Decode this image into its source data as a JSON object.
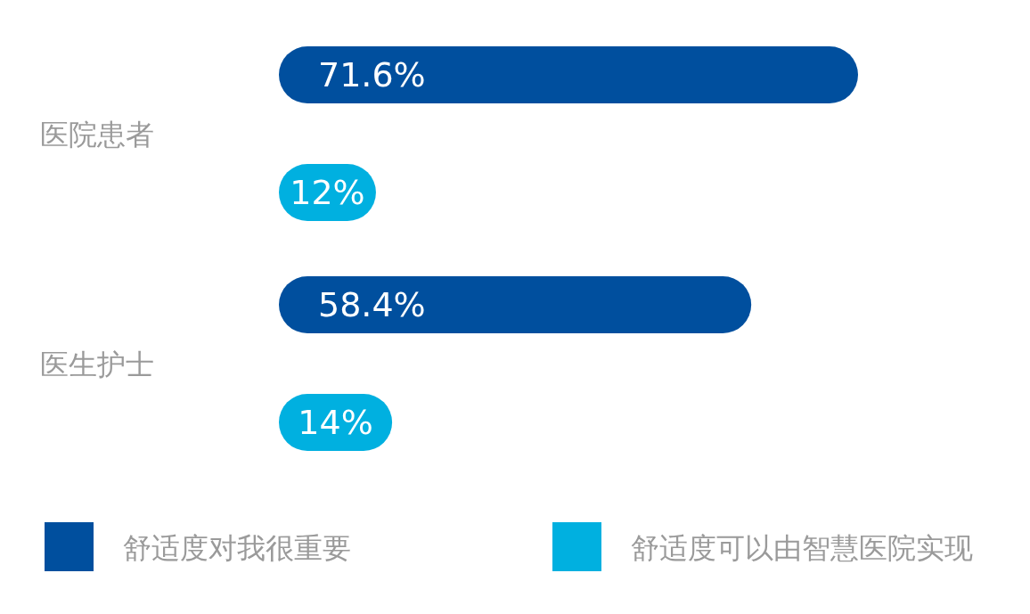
{
  "chart_data": {
    "type": "bar",
    "orientation": "horizontal",
    "categories": [
      "医院患者",
      "医生护士"
    ],
    "series": [
      {
        "name": "舒适度对我很重要",
        "color": "#004f9e",
        "values": [
          71.6,
          58.4
        ],
        "value_labels": [
          "71.6%",
          "58.4%"
        ]
      },
      {
        "name": "舒适度可以由智慧医院实现",
        "color": "#00b0e0",
        "values": [
          12,
          14
        ],
        "value_labels": [
          "12%",
          "14%"
        ]
      }
    ],
    "legend": "bottom"
  }
}
